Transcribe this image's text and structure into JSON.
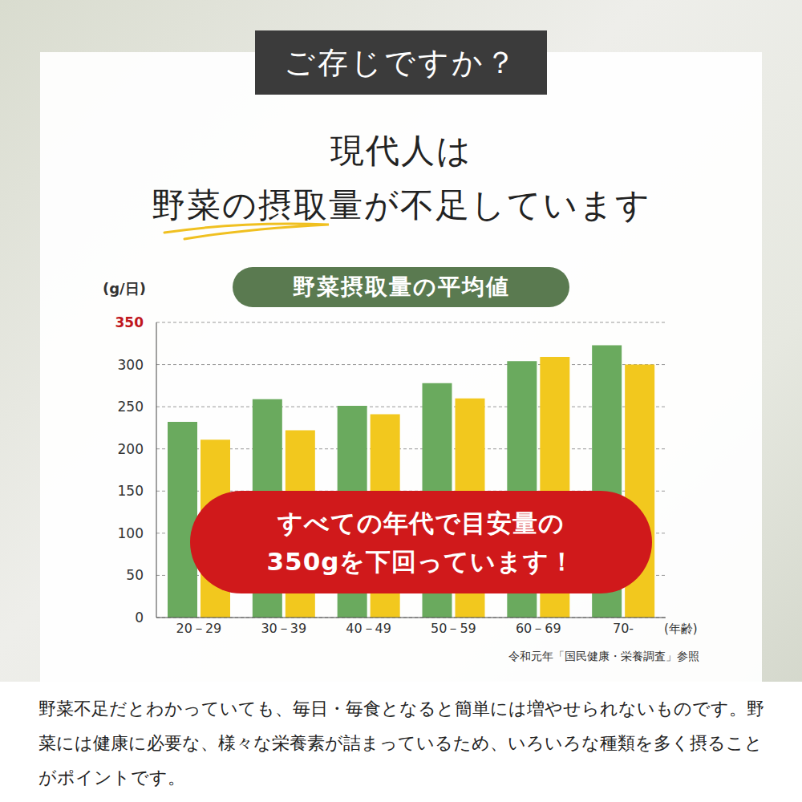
{
  "header": {
    "badge": "ご存じですか？",
    "headline": [
      "現代人は",
      "野菜の摂取量が不足しています"
    ]
  },
  "chart_data": {
    "type": "bar",
    "title": "野菜摂取量の平均値",
    "y_label": "(g/日)",
    "x_label": "(年齢)",
    "categories": [
      "20－29",
      "30－39",
      "40－49",
      "50－59",
      "60－69",
      "70-"
    ],
    "series": [
      {
        "color": "#6aaa5e",
        "values": [
          232,
          259,
          251,
          278,
          304,
          323
        ]
      },
      {
        "color": "#f2c81e",
        "values": [
          211,
          222,
          241,
          260,
          309,
          300
        ]
      }
    ],
    "ylim": [
      0,
      350
    ],
    "yticks": [
      0,
      50,
      100,
      150,
      200,
      250,
      300,
      350
    ],
    "grid": true,
    "annotation": [
      "すべての年代で目安量の",
      "350gを下回っています！"
    ],
    "source": "令和元年「国民健康・栄養調査」参照"
  },
  "body": "野菜不足だとわかっていても、毎日・毎食となると簡単には増やせられないものです。野菜には健康に必要な、様々な栄養素が詰まっているため、いろいろな種類を多く摂ることがポイントです。"
}
